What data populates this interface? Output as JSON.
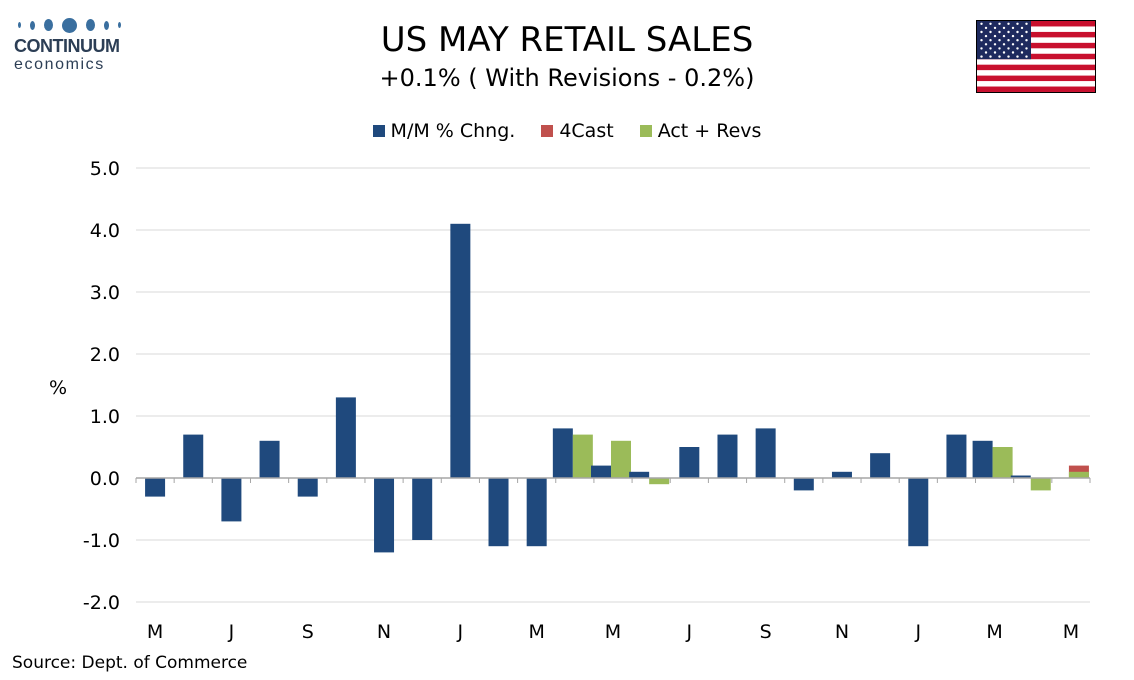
{
  "logo": {
    "word": "CONTINUUM",
    "sub": "economics"
  },
  "title": "US MAY RETAIL SALES",
  "subtitle": "+0.1% ( With Revisions - 0.2%)",
  "source": "Source: Dept. of Commerce",
  "colors": {
    "mm": "#1f497d",
    "forecast": "#c0504d",
    "actrevs": "#9bbb59",
    "grid": "#d9d9d9",
    "axis": "#a6a6a6"
  },
  "chart_data": {
    "type": "bar",
    "ylabel": "%",
    "ylim": [
      -2.0,
      5.0
    ],
    "yticks": [
      "5.0",
      "4.0",
      "3.0",
      "2.0",
      "1.0",
      "0.0",
      "-1.0",
      "-2.0"
    ],
    "ytick_values": [
      5.0,
      4.0,
      3.0,
      2.0,
      1.0,
      0.0,
      -1.0,
      -2.0
    ],
    "xtick_labels": [
      "M",
      "J",
      "S",
      "N",
      "J",
      "M",
      "M",
      "J",
      "S",
      "N",
      "J",
      "M",
      "M"
    ],
    "grid": true,
    "legend_position": "top-center",
    "legend": [
      "M/M % Chng.",
      "4Cast",
      "Act + Revs"
    ],
    "series": [
      {
        "name": "M/M % Chng.",
        "values": [
          -0.3,
          0.7,
          -0.7,
          0.6,
          -0.3,
          1.3,
          -1.2,
          -1.0,
          4.1,
          -1.1,
          -1.1,
          0.8,
          0.2,
          0.1,
          0.5,
          0.7,
          0.8,
          -0.2,
          0.1,
          0.4,
          -1.1,
          0.7,
          0.6,
          0.04,
          0.0
        ]
      },
      {
        "name": "4Cast",
        "values": [
          null,
          null,
          null,
          null,
          null,
          null,
          null,
          null,
          null,
          null,
          null,
          null,
          null,
          null,
          null,
          null,
          null,
          null,
          null,
          null,
          null,
          null,
          null,
          null,
          0.2
        ]
      },
      {
        "name": "Act + Revs",
        "values": [
          null,
          null,
          null,
          null,
          null,
          null,
          null,
          null,
          null,
          null,
          null,
          0.7,
          0.6,
          -0.1,
          null,
          null,
          null,
          null,
          null,
          null,
          null,
          null,
          0.5,
          -0.2,
          0.1
        ]
      }
    ]
  }
}
